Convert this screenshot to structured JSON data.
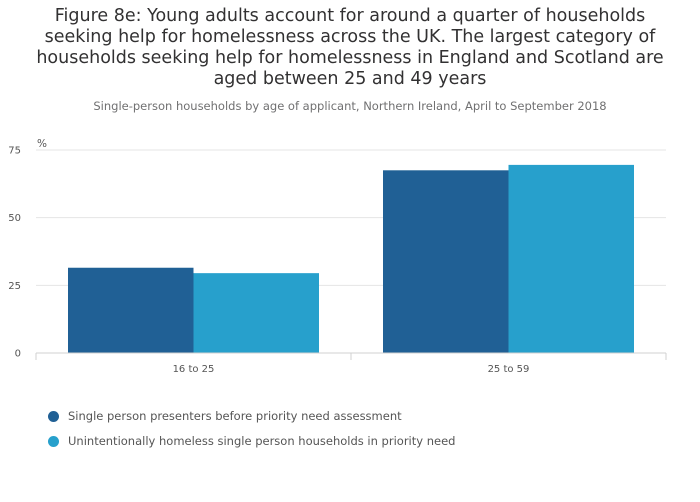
{
  "chart_data": {
    "type": "bar",
    "title": "Figure 8e: Young adults account for around a quarter of households seeking help for homelessness across the UK. The largest category of households seeking help for homelessness in England and Scotland are aged between 25 and 49 years",
    "subtitle": "Single-person households by age of applicant, Northern Ireland, April to September 2018",
    "unit_label": "%",
    "categories": [
      "16 to 25",
      "25 to 59"
    ],
    "series": [
      {
        "name": "Single person presenters before priority need assessment",
        "color": "#206095",
        "values": [
          31.5,
          67.5
        ]
      },
      {
        "name": "Unintentionally homeless single person households in priority need",
        "color": "#27a0cc",
        "values": [
          29.5,
          69.5
        ]
      }
    ],
    "ylim": [
      0,
      75
    ],
    "yticks": [
      "0",
      "25",
      "50",
      "75"
    ],
    "grid": true,
    "legend_position": "bottom-left"
  }
}
